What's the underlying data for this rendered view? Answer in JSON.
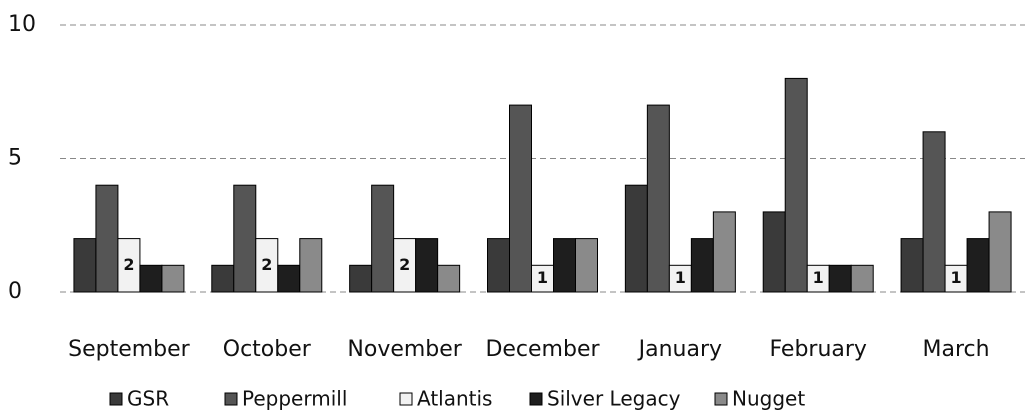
{
  "chart_data": {
    "type": "bar",
    "categories": [
      "September",
      "October",
      "November",
      "December",
      "January",
      "February",
      "March"
    ],
    "series": [
      {
        "name": "GSR",
        "color": "#3a3a3a",
        "values": [
          2,
          1,
          1,
          2,
          4,
          3,
          2
        ]
      },
      {
        "name": "Peppermill",
        "color": "#555555",
        "values": [
          4,
          4,
          4,
          7,
          7,
          8,
          6
        ]
      },
      {
        "name": "Atlantis",
        "color": "#f2f2f2",
        "values": [
          2,
          2,
          2,
          1,
          1,
          1,
          1
        ],
        "data_labels": true
      },
      {
        "name": "Silver Legacy",
        "color": "#1e1e1e",
        "values": [
          1,
          1,
          2,
          2,
          2,
          1,
          2
        ]
      },
      {
        "name": "Nugget",
        "color": "#8a8a8a",
        "values": [
          1,
          2,
          1,
          2,
          3,
          1,
          3
        ]
      }
    ],
    "ylim": [
      0,
      10
    ],
    "yticks": [
      0,
      5,
      10
    ],
    "grid": true,
    "legend": "bottom"
  }
}
